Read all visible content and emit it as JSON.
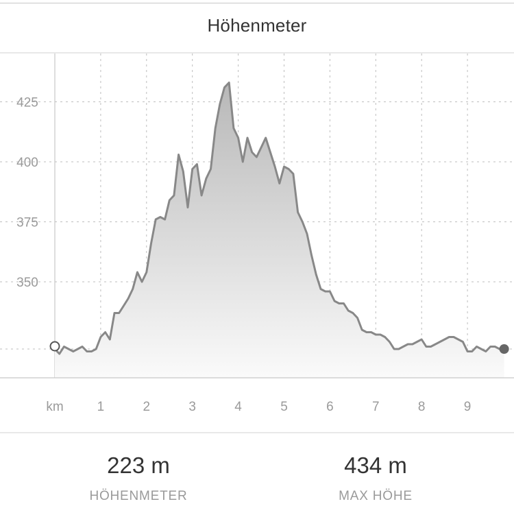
{
  "title": "Höhenmeter",
  "colors": {
    "line": "#888888",
    "fill_top": "#b8b8b8",
    "fill_bottom": "#fafafa",
    "grid": "#bdbdbd",
    "text_muted": "#9a9a9a"
  },
  "stats": [
    {
      "value": "223 m",
      "label": "HÖHENMETER"
    },
    {
      "value": "434 m",
      "label": "MAX HÖHE"
    }
  ],
  "chart_data": {
    "type": "area",
    "x_unit_label": "km",
    "xlim": [
      0,
      9.8
    ],
    "ylim": [
      310,
      445
    ],
    "x_ticks": [
      1,
      2,
      3,
      4,
      5,
      6,
      7,
      8,
      9
    ],
    "y_ticks": [
      350,
      375,
      400,
      425
    ],
    "grid": true,
    "start_marker": "open-circle",
    "end_marker": "filled-circle",
    "series": [
      {
        "x": [
          0,
          0.1,
          0.2,
          0.3,
          0.4,
          0.5,
          0.6,
          0.7,
          0.8,
          0.9,
          1.0,
          1.1,
          1.2,
          1.3,
          1.4,
          1.5,
          1.6,
          1.7,
          1.8,
          1.9,
          2.0,
          2.1,
          2.2,
          2.3,
          2.4,
          2.5,
          2.6,
          2.7,
          2.8,
          2.9,
          3.0,
          3.1,
          3.2,
          3.3,
          3.4,
          3.5,
          3.6,
          3.7,
          3.8,
          3.9,
          4.0,
          4.1,
          4.2,
          4.3,
          4.4,
          4.5,
          4.6,
          4.7,
          4.8,
          4.9,
          5.0,
          5.1,
          5.2,
          5.3,
          5.4,
          5.5,
          5.6,
          5.7,
          5.8,
          5.9,
          6.0,
          6.1,
          6.2,
          6.3,
          6.4,
          6.5,
          6.6,
          6.7,
          6.8,
          6.9,
          7.0,
          7.1,
          7.2,
          7.3,
          7.4,
          7.5,
          7.6,
          7.7,
          7.8,
          7.9,
          8.0,
          8.1,
          8.2,
          8.3,
          8.4,
          8.5,
          8.6,
          8.7,
          8.8,
          8.9,
          9.0,
          9.1,
          9.2,
          9.3,
          9.4,
          9.5,
          9.6,
          9.7,
          9.8
        ],
        "y": [
          322,
          320,
          323,
          322,
          321,
          322,
          323,
          321,
          321,
          322,
          327,
          329,
          326,
          337,
          337,
          340,
          343,
          347,
          354,
          350,
          354,
          366,
          376,
          377,
          376,
          384,
          386,
          403,
          396,
          381,
          397,
          399,
          386,
          393,
          397,
          414,
          424,
          431,
          433,
          414,
          410,
          400,
          410,
          404,
          402,
          406,
          410,
          404,
          398,
          391,
          398,
          397,
          395,
          379,
          375,
          370,
          361,
          353,
          347,
          346,
          346,
          342,
          341,
          341,
          338,
          337,
          335,
          330,
          329,
          329,
          328,
          328,
          327,
          325,
          322,
          322,
          323,
          324,
          324,
          325,
          326,
          323,
          323,
          324,
          325,
          326,
          327,
          327,
          326,
          325,
          321,
          321,
          323,
          322,
          321,
          323,
          323,
          322,
          322
        ]
      }
    ]
  }
}
